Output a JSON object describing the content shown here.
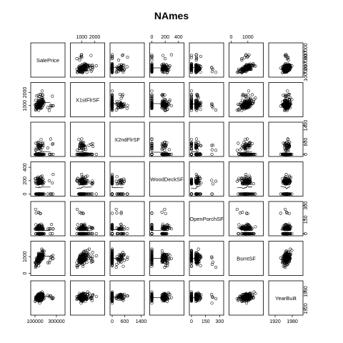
{
  "chart_data": {
    "type": "scatter-matrix",
    "title": "NAmes",
    "variables": [
      "SalePrice",
      "X1stFlrSF",
      "X2ndFlrSF",
      "WoodDeckSF",
      "OpenPorchSF",
      "BsmtSF",
      "YearBuilt"
    ],
    "ranges": [
      [
        80000,
        360000
      ],
      [
        300,
        2600
      ],
      [
        0,
        1450
      ],
      [
        0,
        450
      ],
      [
        0,
        320
      ],
      [
        0,
        1800
      ],
      [
        1905,
        2010
      ]
    ],
    "axis_ticks": {
      "SalePrice": [
        100000,
        300000
      ],
      "X1stFlrSF": [
        1000,
        2000
      ],
      "X2ndFlrSF": [
        0,
        600,
        1400
      ],
      "WoodDeckSF": [
        0,
        200,
        400
      ],
      "OpenPorchSF": [
        0,
        150,
        300
      ],
      "BsmtSF": [
        0,
        1000
      ],
      "YearBuilt": [
        1920,
        1980
      ]
    },
    "right_axis_ticks": {
      "SalePrice": [
        100000,
        200000,
        300000
      ],
      "X2ndFlrSF": [
        0,
        600,
        1400
      ],
      "OpenPorchSF": [
        0,
        150,
        300
      ],
      "YearBuilt": [
        1920,
        1980
      ]
    },
    "left_axis_ticks": {
      "X1stFlrSF": [
        1000,
        2000
      ],
      "WoodDeckSF": [
        0,
        200,
        400
      ],
      "BsmtSF": [
        0,
        1000
      ]
    },
    "n_points": 150,
    "point_style": "open-circle",
    "smoother": true
  }
}
